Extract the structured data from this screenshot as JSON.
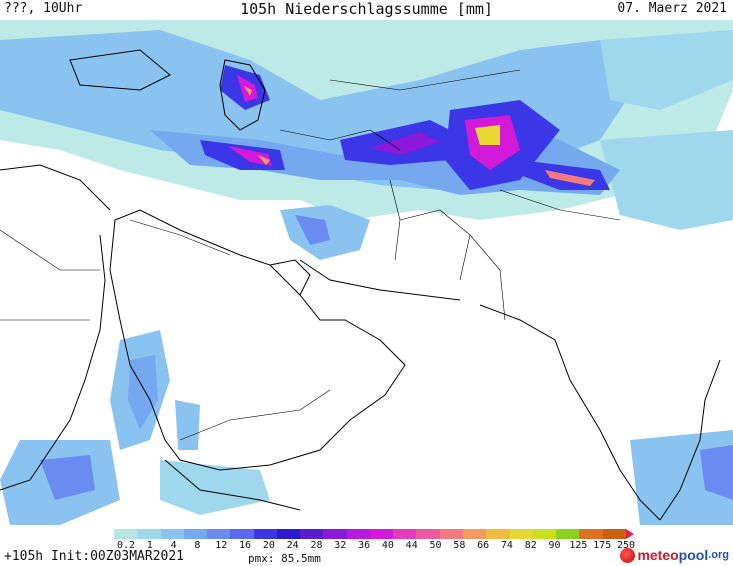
{
  "header": {
    "location": "???, 10Uhr",
    "title": "105h Niederschlagssumme [mm]",
    "date": "07. Maerz 2021"
  },
  "legend": {
    "ticks": [
      "0.2",
      "1",
      "4",
      "8",
      "12",
      "16",
      "20",
      "24",
      "28",
      "32",
      "36",
      "40",
      "44",
      "50",
      "58",
      "66",
      "74",
      "82",
      "90",
      "125",
      "175",
      "250"
    ],
    "colors": [
      "#b6e7e4",
      "#9fd7ec",
      "#8ac3f0",
      "#76a8f0",
      "#6a8cf0",
      "#5a6af0",
      "#3b36e6",
      "#2a1ad0",
      "#5a1ad0",
      "#8a1ad8",
      "#b41ae0",
      "#d21ad8",
      "#e43ac0",
      "#ee5aa0",
      "#f47a80",
      "#f49a60",
      "#eebc40",
      "#e6d830",
      "#c8e020",
      "#8cd020",
      "#e07020",
      "#c86010",
      "#e0204a"
    ]
  },
  "footer": {
    "forecast": "+105h Init:00Z03MAR2021",
    "pmx": "pmx: 85.5mm",
    "brand_a": "meteo",
    "brand_b": "pool",
    "brand_c": ".org"
  },
  "colors": {
    "light_cyan": "#b6e7e4",
    "light_blue": "#8ac3f0",
    "blue": "#6a8cf0",
    "dark_blue": "#3b36e6",
    "purple": "#8a1ad8",
    "magenta": "#d21ad8",
    "orange": "#f49a60",
    "yellow": "#e6d830"
  }
}
